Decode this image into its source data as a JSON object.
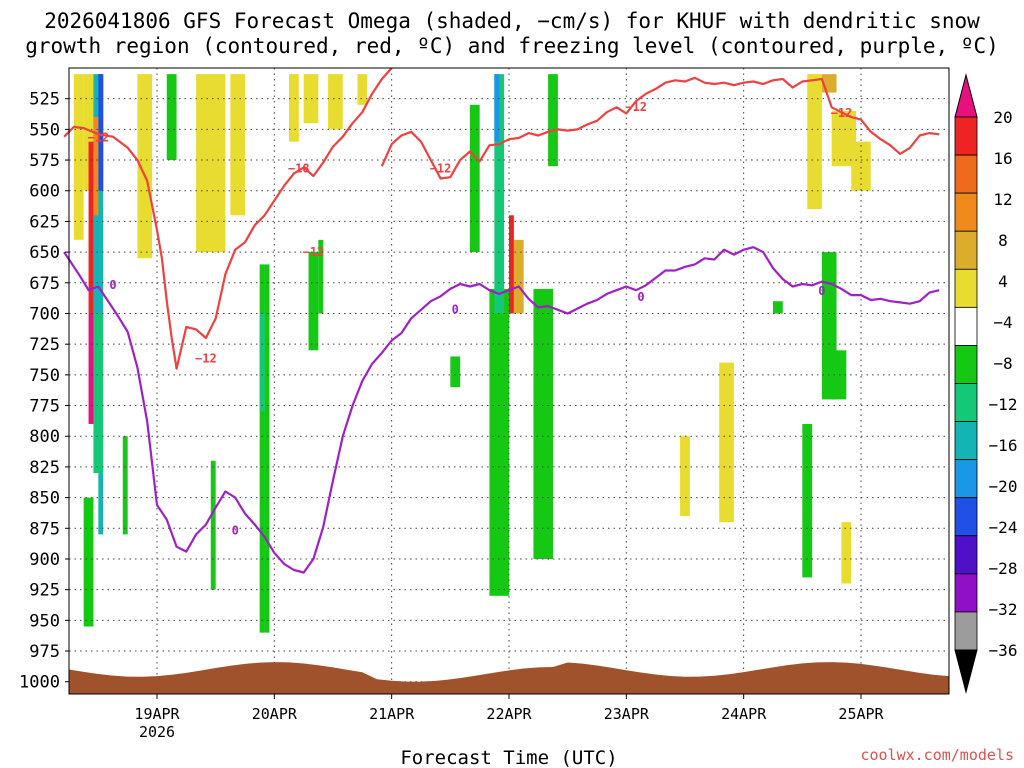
{
  "chart_data": {
    "type": "heatmap",
    "title_line1": "2026041806 GFS Forecast Omega (shaded, −cm/s) for KHUF with dendritic snow",
    "title_line2": "growth region (contoured, red, ºC) and freezing level (contoured, purple, ºC)",
    "xlabel": "Forecast Time (UTC)",
    "x_ticks": [
      {
        "label": "19APR",
        "sub": "2026",
        "hours": 18
      },
      {
        "label": "20APR",
        "sub": "",
        "hours": 42
      },
      {
        "label": "21APR",
        "sub": "",
        "hours": 66
      },
      {
        "label": "22APR",
        "sub": "",
        "hours": 90
      },
      {
        "label": "23APR",
        "sub": "",
        "hours": 114
      },
      {
        "label": "24APR",
        "sub": "",
        "hours": 138
      },
      {
        "label": "25APR",
        "sub": "",
        "hours": 162
      }
    ],
    "xlim_hours": [
      0,
      180
    ],
    "y_ticks": [
      525,
      550,
      575,
      600,
      625,
      650,
      675,
      700,
      725,
      750,
      775,
      800,
      825,
      850,
      875,
      900,
      925,
      950,
      975,
      1000
    ],
    "ylim_hPa": [
      1010,
      500
    ],
    "ground_hPa": 990,
    "colorbar": {
      "ticks": [
        "20",
        "16",
        "12",
        "8",
        "4",
        "−4",
        "−8",
        "−12",
        "−16",
        "−20",
        "−24",
        "−28",
        "−32",
        "−36"
      ],
      "colors": [
        "#e8107e",
        "#ee2424",
        "#ee6a1c",
        "#f08a1c",
        "#dcac2c",
        "#e8dc30",
        "#ffffff",
        "#14c814",
        "#14c878",
        "#14b4b4",
        "#1c96e6",
        "#2050e6",
        "#5010c8",
        "#9010c8",
        "#9c9c9c",
        "#000000"
      ]
    },
    "dgz_contour": {
      "color": "#f04040",
      "labels": [
        {
          "text": "−12",
          "hours": 6,
          "hPa": 560
        },
        {
          "text": "−18",
          "hours": 47,
          "hPa": 585
        },
        {
          "text": "−12",
          "hours": 50,
          "hPa": 653
        },
        {
          "text": "−12",
          "hours": 28,
          "hPa": 740
        },
        {
          "text": "−12",
          "hours": 76,
          "hPa": 585
        },
        {
          "text": "−12",
          "hours": 116,
          "hPa": 535
        },
        {
          "text": "−12",
          "hours": 158,
          "hPa": 540
        }
      ],
      "points": [
        [
          -1,
          556
        ],
        [
          1,
          548
        ],
        [
          3,
          549
        ],
        [
          6,
          554
        ],
        [
          9,
          556
        ],
        [
          12,
          565
        ],
        [
          14,
          575
        ],
        [
          16,
          592
        ],
        [
          17,
          612
        ],
        [
          18,
          632
        ],
        [
          19,
          655
        ],
        [
          20,
          690
        ],
        [
          21,
          720
        ],
        [
          22,
          745
        ],
        [
          23,
          728
        ],
        [
          24,
          711
        ],
        [
          26,
          713
        ],
        [
          28,
          720
        ],
        [
          30,
          704
        ],
        [
          32,
          668
        ],
        [
          34,
          648
        ],
        [
          36,
          642
        ],
        [
          38,
          628
        ],
        [
          40,
          620
        ],
        [
          42,
          608
        ],
        [
          44,
          596
        ],
        [
          46,
          586
        ],
        [
          48,
          581
        ],
        [
          50,
          588
        ],
        [
          52,
          577
        ],
        [
          54,
          564
        ],
        [
          56,
          556
        ],
        [
          58,
          545
        ],
        [
          60,
          536
        ],
        [
          62,
          521
        ],
        [
          64,
          509
        ],
        [
          66,
          500
        ]
      ],
      "points2": [
        [
          64,
          580
        ],
        [
          66,
          562
        ],
        [
          68,
          555
        ],
        [
          70,
          552
        ],
        [
          72,
          560
        ],
        [
          74,
          575
        ],
        [
          76,
          590
        ],
        [
          78,
          589
        ],
        [
          80,
          575
        ],
        [
          82,
          568
        ],
        [
          84,
          576
        ],
        [
          86,
          563
        ],
        [
          88,
          562
        ],
        [
          90,
          558
        ],
        [
          92,
          557
        ],
        [
          94,
          553
        ],
        [
          96,
          555
        ],
        [
          98,
          552
        ],
        [
          100,
          550
        ],
        [
          102,
          551
        ],
        [
          104,
          550
        ],
        [
          106,
          546
        ],
        [
          108,
          543
        ],
        [
          110,
          536
        ],
        [
          112,
          532
        ],
        [
          114,
          537
        ],
        [
          116,
          527
        ],
        [
          118,
          521
        ],
        [
          120,
          517
        ],
        [
          122,
          512
        ],
        [
          124,
          510
        ],
        [
          126,
          511
        ],
        [
          128,
          508
        ],
        [
          130,
          512
        ],
        [
          132,
          513
        ],
        [
          134,
          512
        ],
        [
          136,
          514
        ],
        [
          138,
          512
        ],
        [
          140,
          511
        ],
        [
          142,
          513
        ],
        [
          144,
          510
        ],
        [
          146,
          509
        ],
        [
          148,
          516
        ],
        [
          150,
          511
        ],
        [
          152,
          510
        ],
        [
          154,
          509
        ],
        [
          156,
          532
        ],
        [
          158,
          536
        ],
        [
          160,
          540
        ],
        [
          162,
          542
        ],
        [
          164,
          552
        ],
        [
          166,
          558
        ],
        [
          168,
          563
        ],
        [
          170,
          570
        ],
        [
          172,
          565
        ],
        [
          174,
          555
        ],
        [
          176,
          553
        ],
        [
          178,
          554
        ]
      ]
    },
    "freezing_contour": {
      "color": "#a020c8",
      "labels": [
        {
          "text": "0",
          "hours": 9,
          "hPa": 680
        },
        {
          "text": "0",
          "hours": 34,
          "hPa": 880
        },
        {
          "text": "0",
          "hours": 79,
          "hPa": 700
        },
        {
          "text": "0",
          "hours": 117,
          "hPa": 690
        },
        {
          "text": "0",
          "hours": 154,
          "hPa": 685
        }
      ],
      "points": [
        [
          -1,
          650
        ],
        [
          2,
          668
        ],
        [
          4,
          681
        ],
        [
          6,
          678
        ],
        [
          8,
          690
        ],
        [
          10,
          702
        ],
        [
          12,
          715
        ],
        [
          14,
          744
        ],
        [
          16,
          788
        ],
        [
          18,
          856
        ],
        [
          20,
          868
        ],
        [
          22,
          890
        ],
        [
          24,
          894
        ],
        [
          26,
          880
        ],
        [
          28,
          872
        ],
        [
          30,
          858
        ],
        [
          32,
          845
        ],
        [
          34,
          850
        ],
        [
          36,
          863
        ],
        [
          38,
          872
        ],
        [
          40,
          882
        ],
        [
          42,
          895
        ],
        [
          44,
          904
        ],
        [
          46,
          909
        ],
        [
          48,
          911
        ],
        [
          50,
          900
        ],
        [
          52,
          874
        ],
        [
          54,
          836
        ],
        [
          56,
          800
        ],
        [
          58,
          775
        ],
        [
          60,
          755
        ],
        [
          62,
          741
        ],
        [
          64,
          732
        ],
        [
          66,
          722
        ],
        [
          68,
          716
        ],
        [
          70,
          704
        ],
        [
          72,
          697
        ],
        [
          74,
          690
        ],
        [
          76,
          686
        ],
        [
          78,
          680
        ],
        [
          80,
          676
        ],
        [
          82,
          678
        ],
        [
          84,
          676
        ],
        [
          86,
          681
        ],
        [
          88,
          684
        ],
        [
          90,
          681
        ],
        [
          92,
          678
        ],
        [
          94,
          688
        ],
        [
          96,
          695
        ],
        [
          98,
          694
        ],
        [
          100,
          697
        ],
        [
          102,
          700
        ],
        [
          104,
          696
        ],
        [
          106,
          692
        ],
        [
          108,
          689
        ],
        [
          110,
          684
        ],
        [
          112,
          681
        ],
        [
          114,
          678
        ],
        [
          116,
          681
        ],
        [
          118,
          677
        ],
        [
          120,
          671
        ],
        [
          122,
          665
        ],
        [
          124,
          665
        ],
        [
          126,
          662
        ],
        [
          128,
          660
        ],
        [
          130,
          655
        ],
        [
          132,
          656
        ],
        [
          134,
          648
        ],
        [
          136,
          652
        ],
        [
          138,
          648
        ],
        [
          140,
          646
        ],
        [
          142,
          650
        ],
        [
          144,
          663
        ],
        [
          146,
          672
        ],
        [
          148,
          678
        ],
        [
          150,
          676
        ],
        [
          152,
          677
        ],
        [
          154,
          674
        ],
        [
          156,
          676
        ],
        [
          158,
          680
        ],
        [
          160,
          685
        ],
        [
          162,
          685
        ],
        [
          164,
          689
        ],
        [
          166,
          688
        ],
        [
          168,
          690
        ],
        [
          170,
          691
        ],
        [
          172,
          692
        ],
        [
          174,
          690
        ],
        [
          176,
          683
        ],
        [
          178,
          681
        ]
      ]
    },
    "shaded_regions": [
      {
        "color": "#e8dc30",
        "x0": 3,
        "x1": 7,
        "p0": 505,
        "p1": 600
      },
      {
        "color": "#e8dc30",
        "x0": 14,
        "x1": 17,
        "p0": 505,
        "p1": 655
      },
      {
        "color": "#e8dc30",
        "x0": 26,
        "x1": 32,
        "p0": 505,
        "p1": 650
      },
      {
        "color": "#e8dc30",
        "x0": 33,
        "x1": 36,
        "p0": 505,
        "p1": 620
      },
      {
        "color": "#e8dc30",
        "x0": 45,
        "x1": 47,
        "p0": 505,
        "p1": 560
      },
      {
        "color": "#e8dc30",
        "x0": 48,
        "x1": 51,
        "p0": 505,
        "p1": 545
      },
      {
        "color": "#e8dc30",
        "x0": 53,
        "x1": 56,
        "p0": 505,
        "p1": 550
      },
      {
        "color": "#e8dc30",
        "x0": 59,
        "x1": 61,
        "p0": 505,
        "p1": 530
      },
      {
        "color": "#e8dc30",
        "x0": 125,
        "x1": 127,
        "p0": 800,
        "p1": 865
      },
      {
        "color": "#e8dc30",
        "x0": 133,
        "x1": 136,
        "p0": 740,
        "p1": 870
      },
      {
        "color": "#e8dc30",
        "x0": 151,
        "x1": 154,
        "p0": 505,
        "p1": 615
      },
      {
        "color": "#e8dc30",
        "x0": 156,
        "x1": 161,
        "p0": 535,
        "p1": 580
      },
      {
        "color": "#e8dc30",
        "x0": 160,
        "x1": 164,
        "p0": 560,
        "p1": 600
      },
      {
        "color": "#e8dc30",
        "x0": 158,
        "x1": 160,
        "p0": 870,
        "p1": 920
      },
      {
        "color": "#dcac2c",
        "x0": 154,
        "x1": 157,
        "p0": 505,
        "p1": 520
      },
      {
        "color": "#dcac2c",
        "x0": 91,
        "x1": 93,
        "p0": 640,
        "p1": 700
      },
      {
        "color": "#14c814",
        "x0": 3,
        "x1": 5,
        "p0": 850,
        "p1": 955
      },
      {
        "color": "#14c814",
        "x0": 11,
        "x1": 12,
        "p0": 800,
        "p1": 880
      },
      {
        "color": "#14c814",
        "x0": 20,
        "x1": 22,
        "p0": 505,
        "p1": 575
      },
      {
        "color": "#14c814",
        "x0": 29,
        "x1": 30,
        "p0": 820,
        "p1": 925
      },
      {
        "color": "#14c814",
        "x0": 39,
        "x1": 40,
        "p0": 660,
        "p1": 960
      },
      {
        "color": "#14c814",
        "x0": 40,
        "x1": 41,
        "p0": 660,
        "p1": 960
      },
      {
        "color": "#14c814",
        "x0": 49,
        "x1": 51,
        "p0": 650,
        "p1": 730
      },
      {
        "color": "#14c814",
        "x0": 51,
        "x1": 52,
        "p0": 640,
        "p1": 700
      },
      {
        "color": "#14c814",
        "x0": 78,
        "x1": 80,
        "p0": 735,
        "p1": 760
      },
      {
        "color": "#14c814",
        "x0": 82,
        "x1": 84,
        "p0": 530,
        "p1": 650
      },
      {
        "color": "#14c814",
        "x0": 86,
        "x1": 90,
        "p0": 680,
        "p1": 930
      },
      {
        "color": "#14c814",
        "x0": 95,
        "x1": 99,
        "p0": 680,
        "p1": 900
      },
      {
        "color": "#14c814",
        "x0": 98,
        "x1": 100,
        "p0": 505,
        "p1": 580
      },
      {
        "color": "#14c814",
        "x0": 144,
        "x1": 146,
        "p0": 690,
        "p1": 700
      },
      {
        "color": "#14c814",
        "x0": 150,
        "x1": 152,
        "p0": 790,
        "p1": 915
      },
      {
        "color": "#14c814",
        "x0": 154,
        "x1": 157,
        "p0": 650,
        "p1": 770
      },
      {
        "color": "#14c814",
        "x0": 156,
        "x1": 159,
        "p0": 730,
        "p1": 770
      },
      {
        "color": "#14c878",
        "x0": 5,
        "x1": 7,
        "p0": 700,
        "p1": 830
      },
      {
        "color": "#14c878",
        "x0": 39,
        "x1": 40,
        "p0": 700,
        "p1": 780
      },
      {
        "color": "#14c878",
        "x0": 87,
        "x1": 89,
        "p0": 505,
        "p1": 700
      },
      {
        "color": "#14b4b4",
        "x0": 5,
        "x1": 7,
        "p0": 505,
        "p1": 700
      },
      {
        "color": "#14b4b4",
        "x0": 6,
        "x1": 7,
        "p0": 830,
        "p1": 880
      },
      {
        "color": "#1c96e6",
        "x0": 87,
        "x1": 88,
        "p0": 505,
        "p1": 560
      },
      {
        "color": "#2050e6",
        "x0": 6,
        "x1": 7,
        "p0": 505,
        "p1": 600
      },
      {
        "color": "#e8107e",
        "x0": 4,
        "x1": 5,
        "p0": 700,
        "p1": 790
      },
      {
        "color": "#ee2424",
        "x0": 4,
        "x1": 5,
        "p0": 560,
        "p1": 700
      },
      {
        "color": "#ee2424",
        "x0": 90,
        "x1": 91,
        "p0": 620,
        "p1": 700
      },
      {
        "color": "#f08a1c",
        "x0": 5,
        "x1": 6,
        "p0": 540,
        "p1": 620
      },
      {
        "color": "#e8dc30",
        "x0": 1,
        "x1": 3,
        "p0": 505,
        "p1": 640
      }
    ]
  },
  "credit": "coolwx.com/models"
}
